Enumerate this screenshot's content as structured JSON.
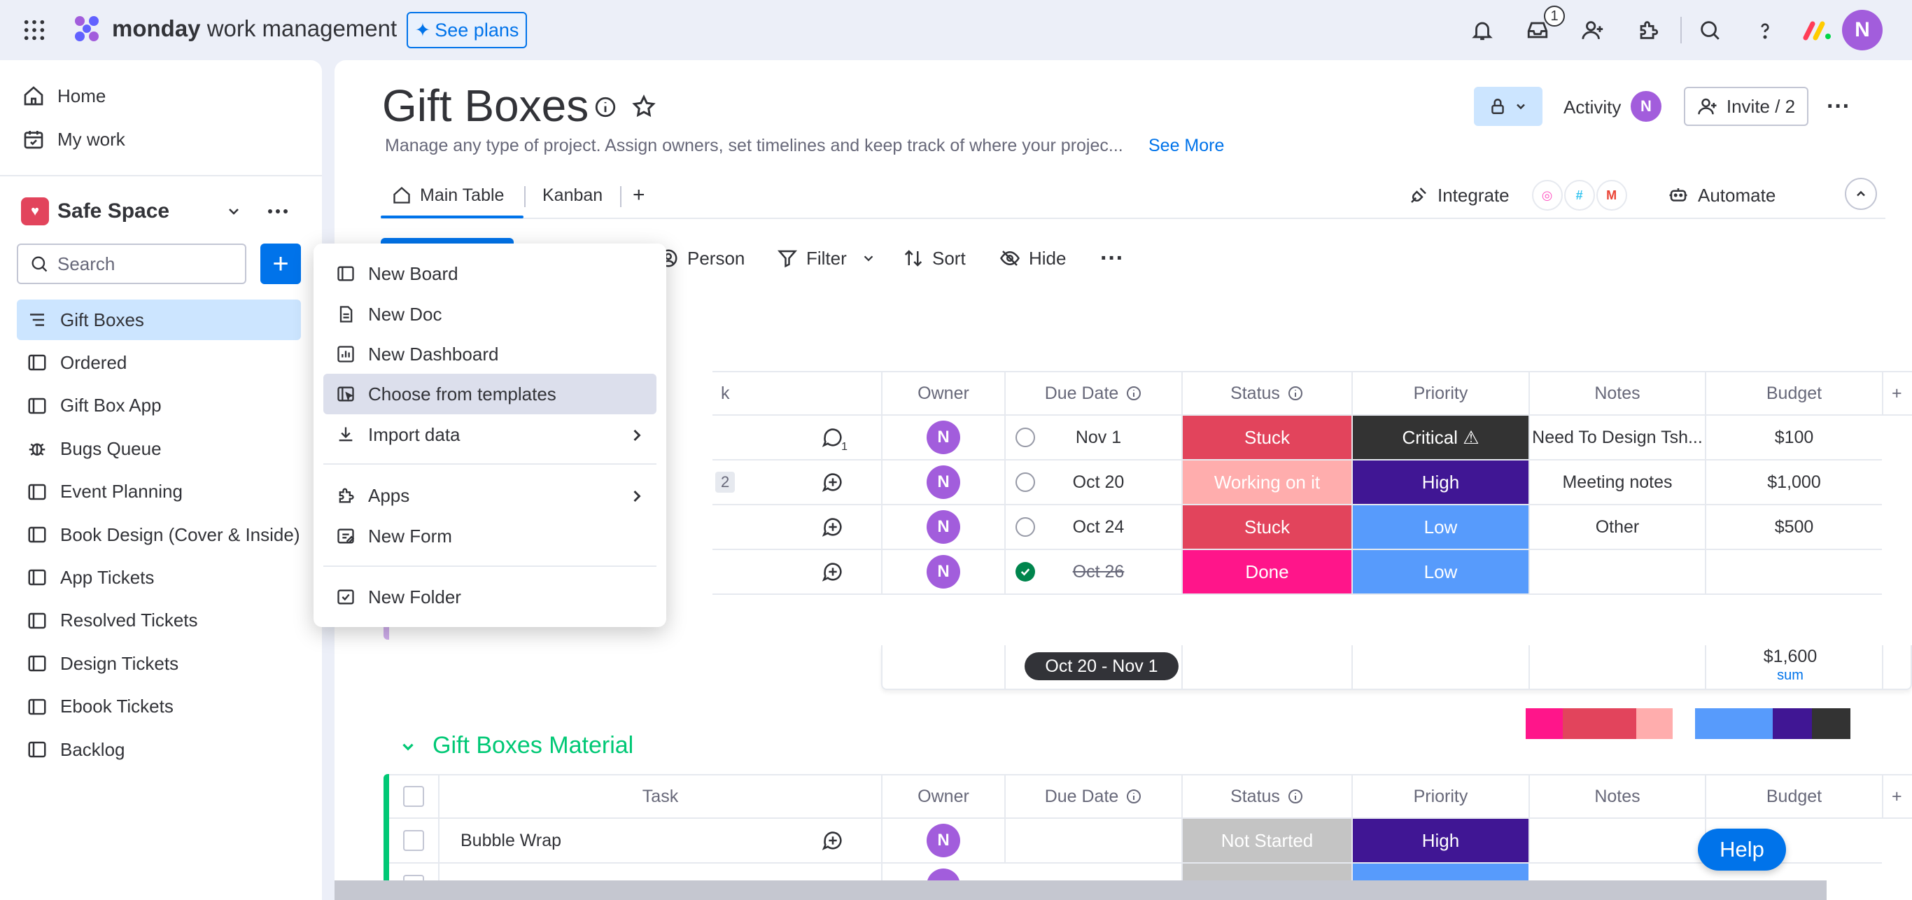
{
  "topbar": {
    "brand_bold": "monday",
    "brand_light": " work management",
    "see_plans": "See plans",
    "inbox_count": "1",
    "avatar_initial": "N"
  },
  "sidebar": {
    "home": "Home",
    "my_work": "My work",
    "workspace": "Safe Space",
    "search_placeholder": "Search",
    "add": "+",
    "items": [
      {
        "label": "Gift Boxes",
        "icon": "board-table-icon"
      },
      {
        "label": "Ordered",
        "icon": "board-icon"
      },
      {
        "label": "Gift Box App",
        "icon": "board-icon"
      },
      {
        "label": "Bugs Queue",
        "icon": "bug-icon"
      },
      {
        "label": "Event Planning",
        "icon": "board-icon"
      },
      {
        "label": "Book Design (Cover & Inside)",
        "icon": "board-icon"
      },
      {
        "label": "App Tickets",
        "icon": "board-icon"
      },
      {
        "label": "Resolved Tickets",
        "icon": "board-icon"
      },
      {
        "label": "Design Tickets",
        "icon": "board-icon"
      },
      {
        "label": "Ebook Tickets",
        "icon": "board-icon"
      },
      {
        "label": "Backlog",
        "icon": "board-icon"
      }
    ]
  },
  "board": {
    "title": "Gift Boxes",
    "description": "Manage any type of project. Assign owners, set timelines and keep track of where your projec...",
    "see_more": "See More",
    "activity": "Activity",
    "activity_avatar": "N",
    "invite": "Invite / 2",
    "tabs": [
      "Main Table",
      "Kanban",
      "+"
    ],
    "integrate": "Integrate",
    "automate": "Automate"
  },
  "toolbar": {
    "person": "Person",
    "filter": "Filter",
    "sort": "Sort",
    "hide": "Hide"
  },
  "columns": {
    "task_partial": "k",
    "task": "Task",
    "owner": "Owner",
    "due_date": "Due Date",
    "status": "Status",
    "priority": "Priority",
    "notes": "Notes",
    "budget": "Budget"
  },
  "group1": {
    "rows": [
      {
        "updates": "1",
        "owner": "N",
        "done": false,
        "due": "Nov 1",
        "status": "Stuck",
        "status_color": "#e2445c",
        "priority": "Critical ⚠",
        "priority_color": "#333333",
        "notes": "Need To Design Tsh...",
        "budget": "$100",
        "subitems": ""
      },
      {
        "updates": "",
        "owner": "N",
        "done": false,
        "due": "Oct 20",
        "status": "Working on it",
        "status_color": "#ffadad",
        "priority": "High",
        "priority_color": "#401694",
        "notes": "Meeting notes",
        "budget": "$1,000",
        "subitems": "2"
      },
      {
        "updates": "",
        "owner": "N",
        "done": false,
        "due": "Oct 24",
        "status": "Stuck",
        "status_color": "#e2445c",
        "priority": "Low",
        "priority_color": "#579bfc",
        "notes": "Other",
        "budget": "$500",
        "subitems": ""
      },
      {
        "updates": "",
        "owner": "N",
        "done": true,
        "due": "Oct 26",
        "status": "Done",
        "status_color": "#ff158a",
        "priority": "Low",
        "priority_color": "#579bfc",
        "notes": "",
        "budget": "",
        "subitems": ""
      }
    ],
    "date_range": "Oct 20 - Nov 1",
    "budget_sum": "$1,600",
    "budget_sum_label": "sum"
  },
  "group2": {
    "title": "Gift Boxes Material",
    "rows": [
      {
        "task": "Bubble Wrap",
        "owner": "N",
        "status": "Not Started",
        "status_color": "#c4c4c4",
        "priority": "High",
        "priority_color": "#401694"
      }
    ]
  },
  "menu": {
    "items": [
      {
        "label": "New Board",
        "icon": "board-icon"
      },
      {
        "label": "New Doc",
        "icon": "doc-icon"
      },
      {
        "label": "New Dashboard",
        "icon": "dashboard-icon"
      },
      {
        "label": "Choose from templates",
        "icon": "templates-icon"
      },
      {
        "label": "Import data",
        "icon": "import-icon"
      },
      {
        "label": "Apps",
        "icon": "apps-icon"
      },
      {
        "label": "New Form",
        "icon": "form-icon"
      },
      {
        "label": "New Folder",
        "icon": "folder-icon"
      }
    ]
  },
  "help": "Help"
}
